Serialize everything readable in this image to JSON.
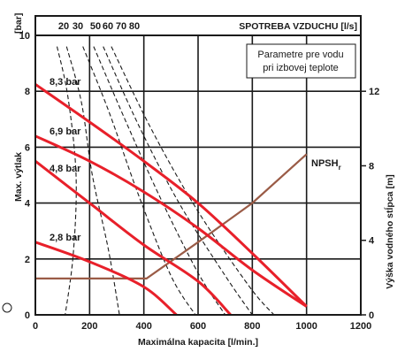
{
  "chart_data": {
    "type": "line",
    "xlabel": "Maximálna kapacita [l/min.]",
    "ylabel": "Max. výtlak",
    "y_unit_label": "[bar]",
    "y2label": "Výška vodného stĺpca [m]",
    "top_axis_label": "SPOTREBA VZDUCHU [l/s]",
    "top_ticks": [
      "20",
      "30",
      "50",
      "60",
      "70",
      "80"
    ],
    "note_lines": [
      "Parametre pre vodu",
      "pri izbovej teplote"
    ],
    "xlim": [
      0,
      1200
    ],
    "ylim": [
      0,
      10
    ],
    "y2lim": [
      0,
      15
    ],
    "x_ticks": [
      "0",
      "200",
      "400",
      "600",
      "800",
      "1000",
      "1200"
    ],
    "y_ticks": [
      "0",
      "2",
      "4",
      "6",
      "8",
      "10"
    ],
    "y2_ticks": [
      "0",
      "4",
      "8",
      "12"
    ],
    "grid": true,
    "pressure_series": [
      {
        "name": "8,3 bar",
        "color": "#e8202a",
        "points": [
          [
            0,
            8.25
          ],
          [
            200,
            6.9
          ],
          [
            400,
            5.5
          ],
          [
            600,
            4.0
          ],
          [
            800,
            2.2
          ],
          [
            1000,
            0.3
          ]
        ]
      },
      {
        "name": "6,9 bar",
        "color": "#e8202a",
        "points": [
          [
            0,
            6.4
          ],
          [
            200,
            5.5
          ],
          [
            400,
            4.4
          ],
          [
            600,
            3.1
          ],
          [
            800,
            1.6
          ],
          [
            1000,
            0.3
          ]
        ]
      },
      {
        "name": "4,8 bar",
        "color": "#e8202a",
        "points": [
          [
            0,
            5.5
          ],
          [
            200,
            4.0
          ],
          [
            400,
            2.5
          ],
          [
            600,
            1.2
          ],
          [
            720,
            0.0
          ]
        ]
      },
      {
        "name": "2,8 bar",
        "color": "#e8202a",
        "points": [
          [
            0,
            2.6
          ],
          [
            200,
            1.9
          ],
          [
            400,
            1.0
          ],
          [
            520,
            0.0
          ]
        ]
      }
    ],
    "air_consumption_series": [
      {
        "name": "20",
        "color": "#1a1a1a",
        "points": [
          [
            80,
            9.6
          ],
          [
            120,
            7.8
          ],
          [
            150,
            5.0
          ],
          [
            140,
            2.2
          ],
          [
            110,
            0.0
          ]
        ]
      },
      {
        "name": "30",
        "color": "#1a1a1a",
        "points": [
          [
            115,
            9.6
          ],
          [
            170,
            7.6
          ],
          [
            210,
            5.0
          ],
          [
            270,
            2.3
          ],
          [
            310,
            0.0
          ]
        ]
      },
      {
        "name": "50",
        "color": "#1a1a1a",
        "points": [
          [
            175,
            9.6
          ],
          [
            270,
            7.3
          ],
          [
            380,
            4.3
          ],
          [
            500,
            1.4
          ],
          [
            590,
            0.0
          ]
        ]
      },
      {
        "name": "60",
        "color": "#1a1a1a",
        "points": [
          [
            215,
            9.6
          ],
          [
            330,
            7.0
          ],
          [
            460,
            4.2
          ],
          [
            600,
            1.5
          ],
          [
            700,
            0.0
          ]
        ]
      },
      {
        "name": "70",
        "color": "#1a1a1a",
        "points": [
          [
            250,
            9.6
          ],
          [
            380,
            6.8
          ],
          [
            530,
            4.0
          ],
          [
            700,
            1.4
          ],
          [
            800,
            0.0
          ]
        ]
      },
      {
        "name": "80",
        "color": "#1a1a1a",
        "points": [
          [
            280,
            9.6
          ],
          [
            430,
            6.6
          ],
          [
            600,
            3.7
          ],
          [
            790,
            1.0
          ],
          [
            880,
            0.0
          ]
        ]
      }
    ],
    "npsh_series": {
      "name": "NPSH",
      "name_subscript": "r",
      "color": "#9a5b46",
      "points": [
        [
          0,
          1.3
        ],
        [
          410,
          1.3
        ],
        [
          600,
          2.6
        ],
        [
          800,
          4.0
        ],
        [
          1000,
          5.75
        ]
      ]
    }
  }
}
